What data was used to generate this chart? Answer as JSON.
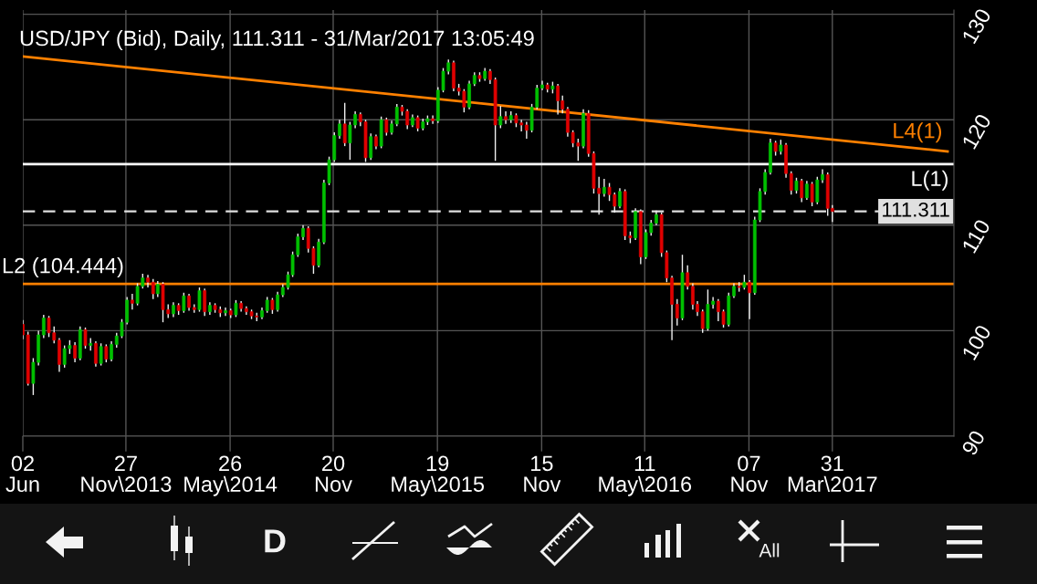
{
  "chart_data": {
    "type": "candlestick",
    "title": "USD/JPY (Bid), Daily, 111.311 - 31/Mar/2017 13:05:49",
    "xlim": [
      "2013-06-02",
      "2017-10-27"
    ],
    "xticks": [
      {
        "value": "2013-06-02",
        "label": "02\nJun"
      },
      {
        "value": "2013-11-27",
        "label": "27\nNov\\2013"
      },
      {
        "value": "2014-05-26",
        "label": "26\nMay\\2014"
      },
      {
        "value": "2014-11-20",
        "label": "20\nNov"
      },
      {
        "value": "2015-05-19",
        "label": "19\nMay\\2015"
      },
      {
        "value": "2015-11-15",
        "label": "15\nNov"
      },
      {
        "value": "2016-05-11",
        "label": "11\nMay\\2016"
      },
      {
        "value": "2016-11-07",
        "label": "07\nNov"
      },
      {
        "value": "2017-03-31",
        "label": "31\nMar\\2017"
      }
    ],
    "ylim": [
      90,
      130.4
    ],
    "yticks": [
      90,
      100,
      110,
      120,
      130
    ],
    "grid": true,
    "series": [
      {
        "x": [
          "2013-06-02",
          "2013-06-11",
          "2013-06-20",
          "2013-06-29",
          "2013-07-08",
          "2013-07-17",
          "2013-07-26",
          "2013-08-04",
          "2013-08-13",
          "2013-08-22",
          "2013-08-31",
          "2013-09-09",
          "2013-09-18",
          "2013-09-27",
          "2013-10-06",
          "2013-10-15",
          "2013-10-24",
          "2013-11-02",
          "2013-11-11",
          "2013-11-20",
          "2013-11-29",
          "2013-12-08",
          "2013-12-17",
          "2013-12-26",
          "2014-01-04",
          "2014-01-13",
          "2014-01-21",
          "2014-01-30",
          "2014-02-08",
          "2014-02-17",
          "2014-02-26",
          "2014-03-07",
          "2014-03-16",
          "2014-03-25",
          "2014-04-03",
          "2014-04-12",
          "2014-04-21",
          "2014-04-30",
          "2014-05-09",
          "2014-05-18",
          "2014-05-27",
          "2014-06-05",
          "2014-06-14",
          "2014-06-23",
          "2014-07-02",
          "2014-07-11",
          "2014-07-20",
          "2014-07-29",
          "2014-08-07",
          "2014-08-16",
          "2014-08-25",
          "2014-09-03",
          "2014-09-11",
          "2014-09-20",
          "2014-09-29",
          "2014-10-08",
          "2014-10-17",
          "2014-10-26",
          "2014-11-04",
          "2014-11-13",
          "2014-11-22",
          "2014-12-01",
          "2014-12-10",
          "2014-12-19",
          "2014-12-28",
          "2015-01-06",
          "2015-01-15",
          "2015-01-24",
          "2015-02-02",
          "2015-02-11",
          "2015-02-20",
          "2015-03-01",
          "2015-03-10",
          "2015-03-19",
          "2015-03-28",
          "2015-04-06",
          "2015-04-15",
          "2015-04-24",
          "2015-05-02",
          "2015-05-11",
          "2015-05-20",
          "2015-05-29",
          "2015-06-07",
          "2015-06-16",
          "2015-06-25",
          "2015-07-04",
          "2015-07-13",
          "2015-07-22",
          "2015-07-31",
          "2015-08-09",
          "2015-08-18",
          "2015-08-27",
          "2015-09-05",
          "2015-09-14",
          "2015-09-23",
          "2015-10-02",
          "2015-10-11",
          "2015-10-20",
          "2015-10-29",
          "2015-11-07",
          "2015-11-16",
          "2015-11-25",
          "2015-12-04",
          "2015-12-13",
          "2015-12-21",
          "2015-12-30",
          "2016-01-08",
          "2016-01-17",
          "2016-01-26",
          "2016-02-04",
          "2016-02-13",
          "2016-02-22",
          "2016-03-02",
          "2016-03-11",
          "2016-03-20",
          "2016-03-29",
          "2016-04-07",
          "2016-04-16",
          "2016-04-25",
          "2016-05-04",
          "2016-05-13",
          "2016-05-22",
          "2016-05-31",
          "2016-06-09",
          "2016-06-18",
          "2016-06-27",
          "2016-07-06",
          "2016-07-15",
          "2016-07-24",
          "2016-08-02",
          "2016-08-10",
          "2016-08-19",
          "2016-08-28",
          "2016-09-06",
          "2016-09-15",
          "2016-09-24",
          "2016-10-03",
          "2016-10-12",
          "2016-10-21",
          "2016-10-30",
          "2016-11-08",
          "2016-11-17",
          "2016-11-26",
          "2016-12-05",
          "2016-12-14",
          "2016-12-23",
          "2017-01-01",
          "2017-01-10",
          "2017-01-19",
          "2017-01-28",
          "2017-02-06",
          "2017-02-15",
          "2017-02-24",
          "2017-03-05",
          "2017-03-14",
          "2017-03-23",
          "2017-03-31"
        ],
        "ohlc": [
          [
            100.6,
            101.0,
            99.2,
            99.6
          ],
          [
            99.6,
            99.9,
            94.8,
            95.0
          ],
          [
            95.0,
            97.4,
            93.9,
            97.0
          ],
          [
            97.0,
            100.0,
            96.7,
            99.6
          ],
          [
            99.6,
            101.5,
            99.3,
            101.2
          ],
          [
            101.2,
            101.4,
            99.4,
            99.8
          ],
          [
            99.8,
            100.4,
            98.8,
            99.1
          ],
          [
            99.1,
            99.3,
            96.1,
            96.8
          ],
          [
            96.8,
            98.6,
            96.5,
            98.3
          ],
          [
            98.3,
            99.1,
            97.8,
            98.6
          ],
          [
            98.6,
            98.9,
            97.0,
            97.4
          ],
          [
            97.4,
            100.4,
            97.2,
            100.1
          ],
          [
            100.1,
            100.3,
            98.3,
            98.6
          ],
          [
            98.6,
            99.3,
            98.1,
            98.8
          ],
          [
            98.8,
            99.0,
            96.6,
            96.9
          ],
          [
            96.9,
            98.8,
            96.7,
            98.5
          ],
          [
            98.5,
            98.7,
            97.0,
            97.3
          ],
          [
            97.3,
            99.0,
            97.1,
            98.7
          ],
          [
            98.7,
            99.8,
            98.4,
            99.5
          ],
          [
            99.5,
            101.1,
            99.3,
            100.8
          ],
          [
            100.8,
            103.2,
            100.6,
            102.9
          ],
          [
            102.9,
            103.5,
            102.0,
            102.6
          ],
          [
            102.6,
            104.5,
            102.4,
            104.2
          ],
          [
            104.2,
            105.4,
            104.0,
            105.0
          ],
          [
            105.0,
            105.3,
            104.1,
            104.6
          ],
          [
            104.6,
            104.9,
            103.0,
            103.5
          ],
          [
            103.5,
            104.7,
            103.2,
            104.4
          ],
          [
            104.4,
            104.6,
            100.8,
            102.0
          ],
          [
            102.0,
            102.5,
            101.2,
            101.6
          ],
          [
            101.6,
            102.7,
            101.3,
            102.4
          ],
          [
            102.4,
            102.6,
            101.5,
            101.9
          ],
          [
            101.9,
            103.6,
            101.7,
            103.3
          ],
          [
            103.3,
            103.5,
            101.9,
            102.2
          ],
          [
            102.2,
            102.5,
            101.7,
            102.0
          ],
          [
            102.0,
            104.1,
            101.8,
            103.8
          ],
          [
            103.8,
            104.0,
            101.4,
            101.8
          ],
          [
            101.8,
            102.7,
            101.5,
            102.4
          ],
          [
            102.4,
            102.6,
            101.7,
            102.0
          ],
          [
            102.0,
            102.3,
            101.3,
            101.7
          ],
          [
            101.7,
            102.2,
            101.4,
            101.9
          ],
          [
            101.9,
            102.1,
            101.2,
            101.5
          ],
          [
            101.5,
            102.9,
            101.3,
            102.6
          ],
          [
            102.6,
            102.8,
            101.8,
            102.1
          ],
          [
            102.1,
            102.3,
            101.5,
            101.8
          ],
          [
            101.8,
            102.0,
            101.1,
            101.4
          ],
          [
            101.4,
            101.7,
            100.9,
            101.3
          ],
          [
            101.3,
            102.2,
            101.1,
            101.9
          ],
          [
            101.9,
            103.2,
            101.7,
            102.9
          ],
          [
            102.9,
            103.1,
            101.6,
            102.0
          ],
          [
            102.0,
            103.7,
            101.8,
            103.4
          ],
          [
            103.4,
            104.4,
            103.2,
            104.1
          ],
          [
            104.1,
            105.6,
            103.9,
            105.3
          ],
          [
            105.3,
            107.5,
            105.1,
            107.2
          ],
          [
            107.2,
            109.2,
            107.0,
            108.9
          ],
          [
            108.9,
            110.0,
            108.6,
            109.7
          ],
          [
            109.7,
            109.9,
            107.4,
            107.8
          ],
          [
            107.8,
            108.0,
            105.4,
            106.2
          ],
          [
            106.2,
            108.7,
            106.0,
            108.4
          ],
          [
            108.4,
            114.3,
            108.2,
            114.0
          ],
          [
            114.0,
            116.5,
            113.8,
            116.2
          ],
          [
            116.2,
            118.8,
            116.0,
            118.5
          ],
          [
            118.5,
            120.0,
            118.2,
            119.6
          ],
          [
            119.6,
            121.6,
            117.5,
            117.8
          ],
          [
            117.8,
            119.8,
            116.2,
            119.5
          ],
          [
            119.5,
            120.8,
            119.2,
            120.5
          ],
          [
            120.5,
            120.7,
            119.4,
            119.8
          ],
          [
            119.8,
            120.0,
            116.0,
            116.4
          ],
          [
            116.4,
            118.7,
            116.2,
            118.4
          ],
          [
            118.4,
            118.6,
            117.2,
            117.5
          ],
          [
            117.5,
            120.3,
            117.3,
            120.0
          ],
          [
            120.0,
            120.2,
            118.5,
            118.8
          ],
          [
            118.8,
            119.9,
            118.6,
            119.6
          ],
          [
            119.6,
            121.5,
            119.4,
            121.2
          ],
          [
            121.2,
            121.4,
            120.4,
            120.8
          ],
          [
            120.8,
            121.0,
            119.1,
            119.5
          ],
          [
            119.5,
            120.5,
            119.3,
            120.2
          ],
          [
            120.2,
            120.4,
            118.9,
            119.2
          ],
          [
            119.2,
            120.1,
            119.0,
            119.8
          ],
          [
            119.8,
            120.4,
            119.5,
            120.1
          ],
          [
            120.1,
            120.4,
            119.6,
            119.9
          ],
          [
            119.9,
            123.1,
            119.7,
            122.8
          ],
          [
            122.8,
            124.9,
            122.6,
            124.6
          ],
          [
            124.6,
            125.7,
            124.3,
            125.4
          ],
          [
            125.4,
            125.6,
            122.7,
            123.0
          ],
          [
            123.0,
            123.4,
            122.3,
            122.7
          ],
          [
            122.7,
            122.9,
            120.7,
            121.2
          ],
          [
            121.2,
            123.7,
            121.0,
            123.4
          ],
          [
            123.4,
            124.5,
            123.2,
            124.2
          ],
          [
            124.2,
            124.5,
            123.6,
            123.9
          ],
          [
            123.9,
            124.9,
            123.7,
            124.6
          ],
          [
            124.6,
            124.8,
            123.4,
            123.8
          ],
          [
            123.8,
            124.0,
            116.1,
            119.5
          ],
          [
            119.5,
            121.3,
            119.2,
            120.3
          ],
          [
            120.3,
            120.8,
            119.6,
            120.0
          ],
          [
            120.0,
            120.8,
            119.7,
            120.4
          ],
          [
            120.4,
            120.6,
            119.3,
            119.7
          ],
          [
            119.7,
            120.0,
            118.9,
            119.5
          ],
          [
            119.5,
            119.8,
            118.2,
            119.0
          ],
          [
            119.0,
            121.5,
            118.8,
            121.2
          ],
          [
            121.2,
            123.3,
            121.0,
            123.0
          ],
          [
            123.0,
            123.7,
            122.8,
            123.3
          ],
          [
            123.3,
            123.5,
            122.6,
            122.9
          ],
          [
            122.9,
            123.6,
            122.5,
            123.2
          ],
          [
            123.2,
            123.4,
            120.5,
            121.8
          ],
          [
            121.8,
            122.3,
            120.6,
            121.0
          ],
          [
            121.0,
            121.2,
            118.4,
            118.8
          ],
          [
            118.8,
            119.0,
            117.4,
            117.8
          ],
          [
            117.8,
            118.2,
            116.1,
            117.5
          ],
          [
            117.5,
            121.0,
            117.3,
            120.6
          ],
          [
            120.6,
            120.9,
            116.5,
            116.8
          ],
          [
            116.8,
            117.0,
            113.0,
            113.5
          ],
          [
            113.5,
            114.6,
            111.0,
            113.0
          ],
          [
            113.0,
            114.4,
            112.7,
            113.6
          ],
          [
            113.6,
            114.0,
            112.3,
            112.9
          ],
          [
            112.9,
            113.1,
            111.2,
            111.8
          ],
          [
            111.8,
            113.5,
            111.6,
            113.2
          ],
          [
            113.2,
            113.4,
            108.6,
            109.0
          ],
          [
            109.0,
            109.4,
            108.3,
            108.8
          ],
          [
            108.8,
            111.6,
            108.6,
            111.3
          ],
          [
            111.3,
            111.5,
            106.3,
            107.0
          ],
          [
            107.0,
            109.6,
            106.8,
            109.3
          ],
          [
            109.3,
            110.5,
            109.0,
            110.2
          ],
          [
            110.2,
            111.4,
            110.0,
            111.0
          ],
          [
            111.0,
            111.2,
            107.0,
            107.4
          ],
          [
            107.4,
            107.6,
            104.6,
            105.0
          ],
          [
            105.0,
            105.2,
            99.1,
            102.5
          ],
          [
            102.5,
            103.0,
            100.5,
            101.2
          ],
          [
            101.2,
            107.2,
            101.0,
            105.5
          ],
          [
            105.5,
            106.2,
            103.9,
            104.2
          ],
          [
            104.2,
            104.5,
            102.0,
            102.5
          ],
          [
            102.5,
            102.8,
            101.4,
            101.8
          ],
          [
            101.8,
            102.0,
            99.8,
            100.2
          ],
          [
            100.2,
            103.9,
            100.0,
            102.5
          ],
          [
            102.5,
            103.2,
            102.1,
            102.8
          ],
          [
            102.8,
            103.0,
            100.9,
            101.8
          ],
          [
            101.8,
            102.0,
            100.3,
            100.6
          ],
          [
            100.6,
            103.6,
            100.4,
            103.3
          ],
          [
            103.3,
            104.5,
            103.1,
            104.2
          ],
          [
            104.2,
            104.6,
            103.7,
            104.1
          ],
          [
            104.1,
            105.3,
            103.9,
            104.6
          ],
          [
            104.6,
            104.8,
            101.1,
            103.6
          ],
          [
            103.6,
            110.8,
            103.4,
            110.5
          ],
          [
            110.5,
            113.5,
            110.3,
            113.2
          ],
          [
            113.2,
            115.3,
            112.9,
            115.0
          ],
          [
            115.0,
            118.2,
            114.8,
            117.8
          ],
          [
            117.8,
            118.0,
            116.6,
            117.0
          ],
          [
            117.0,
            118.1,
            116.7,
            117.6
          ],
          [
            117.6,
            117.8,
            114.5,
            114.9
          ],
          [
            114.9,
            115.1,
            112.9,
            113.3
          ],
          [
            113.3,
            114.5,
            113.0,
            114.2
          ],
          [
            114.2,
            114.4,
            112.2,
            112.6
          ],
          [
            112.6,
            114.2,
            112.4,
            113.9
          ],
          [
            113.9,
            114.1,
            111.8,
            112.2
          ],
          [
            112.2,
            114.6,
            112.0,
            114.3
          ],
          [
            114.3,
            115.3,
            114.0,
            114.8
          ],
          [
            114.8,
            115.0,
            110.9,
            111.6
          ],
          [
            111.6,
            111.9,
            110.3,
            111.311
          ]
        ],
        "colors": [
          "#e00000",
          "#e00000",
          "#00c000",
          "#00c000",
          "#00c000",
          "#e00000",
          "#e00000",
          "#e00000",
          "#00c000",
          "#00c000",
          "#e00000",
          "#00c000",
          "#e00000",
          "#00c000",
          "#e00000",
          "#00c000",
          "#e00000",
          "#00c000",
          "#00c000",
          "#00c000",
          "#00c000",
          "#e00000",
          "#00c000",
          "#00c000",
          "#e00000",
          "#e00000",
          "#00c000",
          "#e00000",
          "#e00000",
          "#00c000",
          "#e00000",
          "#00c000",
          "#e00000",
          "#e00000",
          "#00c000",
          "#e00000",
          "#00c000",
          "#e00000",
          "#e00000",
          "#00c000",
          "#e00000",
          "#00c000",
          "#e00000",
          "#e00000",
          "#e00000",
          "#e00000",
          "#00c000",
          "#00c000",
          "#e00000",
          "#00c000",
          "#00c000",
          "#00c000",
          "#00c000",
          "#00c000",
          "#00c000",
          "#e00000",
          "#e00000",
          "#00c000",
          "#00c000",
          "#00c000",
          "#00c000",
          "#00c000",
          "#e00000",
          "#00c000",
          "#00c000",
          "#e00000",
          "#e00000",
          "#00c000",
          "#e00000",
          "#00c000",
          "#e00000",
          "#00c000",
          "#00c000",
          "#e00000",
          "#e00000",
          "#00c000",
          "#e00000",
          "#00c000",
          "#00c000",
          "#e00000",
          "#00c000",
          "#00c000",
          "#00c000",
          "#e00000",
          "#e00000",
          "#e00000",
          "#00c000",
          "#00c000",
          "#e00000",
          "#00c000",
          "#e00000",
          "#e00000",
          "#00c000",
          "#e00000",
          "#00c000",
          "#e00000",
          "#e00000",
          "#e00000",
          "#00c000",
          "#00c000",
          "#00c000",
          "#e00000",
          "#00c000",
          "#e00000",
          "#e00000",
          "#e00000",
          "#e00000",
          "#e00000",
          "#00c000",
          "#e00000",
          "#e00000",
          "#e00000",
          "#00c000",
          "#e00000",
          "#e00000",
          "#00c000",
          "#e00000",
          "#e00000",
          "#00c000",
          "#e00000",
          "#00c000",
          "#00c000",
          "#00c000",
          "#e00000",
          "#e00000",
          "#e00000",
          "#e00000",
          "#00c000",
          "#e00000",
          "#e00000",
          "#e00000",
          "#e00000",
          "#00c000",
          "#00c000",
          "#e00000",
          "#e00000",
          "#00c000",
          "#00c000",
          "#e00000",
          "#00c000",
          "#e00000",
          "#00c000",
          "#00c000",
          "#00c000",
          "#00c000",
          "#e00000",
          "#00c000",
          "#e00000",
          "#e00000",
          "#00c000",
          "#e00000",
          "#00c000",
          "#e00000",
          "#00c000",
          "#00c000",
          "#e00000",
          "#e00000"
        ]
      },
      {
        "type": "line",
        "name": "L4(1)",
        "color": "#ff8000",
        "x": [
          "2013-06-02",
          "2017-10-16"
        ],
        "values": [
          126.0,
          117.0
        ]
      }
    ],
    "ref_lines": [
      {
        "axis": "y",
        "value": 104.444,
        "label": "L2 (104.444)",
        "color": "#ff8000"
      },
      {
        "axis": "y",
        "value": 115.8,
        "label": "L(1)",
        "color": "#ffffff"
      },
      {
        "axis": "y",
        "value": 111.311,
        "label": "111.311",
        "color": "#e0e0e0",
        "line_style": "dashed"
      }
    ],
    "annotations": [
      "D",
      "All"
    ]
  }
}
